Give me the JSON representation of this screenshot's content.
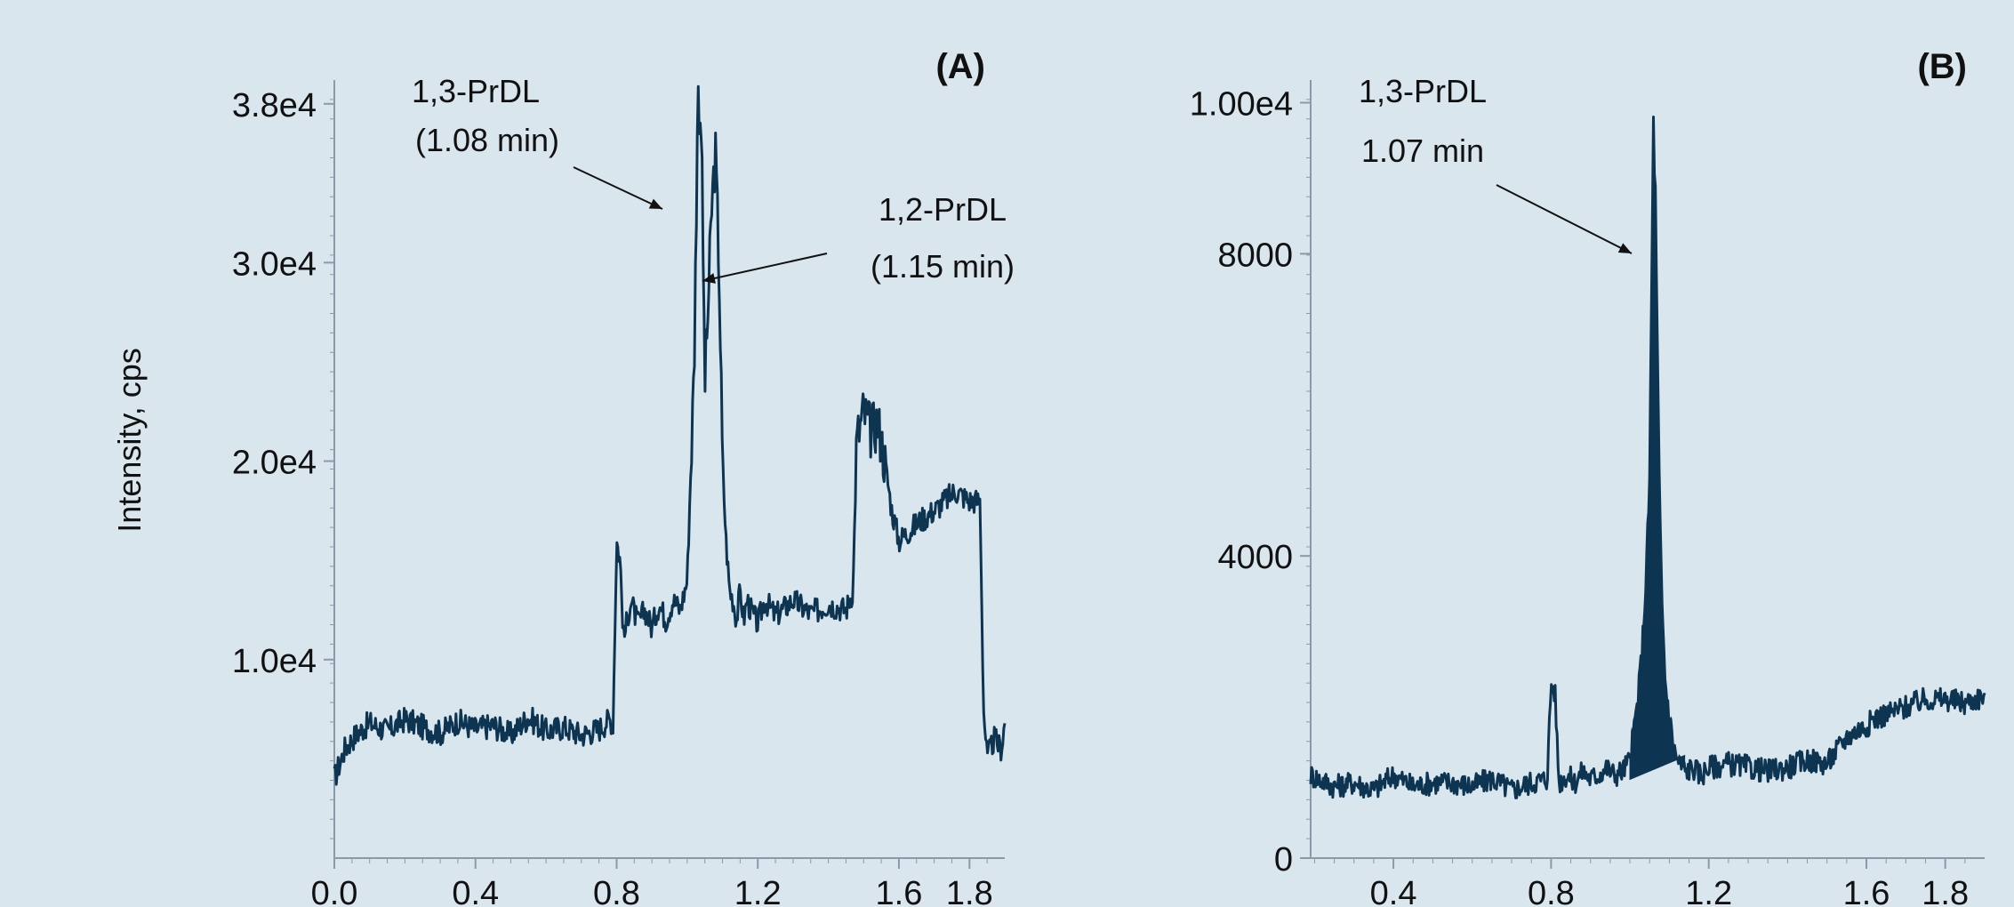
{
  "colors": {
    "background": "#d9e6ee",
    "trace": "#0d3552",
    "axis": "#8a9aa8",
    "text": "#111111"
  },
  "chart_data": [
    {
      "type": "line",
      "panel_label": "(A)",
      "ylabel": "Intensity, cps",
      "xlim": [
        0.0,
        1.9
      ],
      "ylim": [
        0,
        39200
      ],
      "x_ticks": [
        0.0,
        0.4,
        0.8,
        1.2,
        1.6,
        1.8
      ],
      "x_tick_labels": [
        "0.0",
        "0.4",
        "0.8",
        "1.2",
        "1.6",
        "1.8"
      ],
      "y_ticks": [
        10000,
        20000,
        30000,
        38000
      ],
      "y_tick_labels": [
        "1.0e4",
        "2.0e4",
        "3.0e4",
        "3.8e4"
      ],
      "grid": false,
      "series": [
        {
          "x": [
            0.0,
            0.03,
            0.06,
            0.1,
            0.15,
            0.2,
            0.25,
            0.3,
            0.35,
            0.4,
            0.45,
            0.5,
            0.55,
            0.6,
            0.65,
            0.7,
            0.75,
            0.78,
            0.79,
            0.8,
            0.81,
            0.82,
            0.84,
            0.86,
            0.88,
            0.9,
            0.92,
            0.94,
            0.96,
            0.98,
            1.0,
            1.02,
            1.03,
            1.04,
            1.05,
            1.06,
            1.07,
            1.08,
            1.09,
            1.1,
            1.11,
            1.12,
            1.13,
            1.14,
            1.15,
            1.16,
            1.17,
            1.18,
            1.2,
            1.22,
            1.25,
            1.3,
            1.35,
            1.4,
            1.45,
            1.47,
            1.48,
            1.5,
            1.52,
            1.54,
            1.56,
            1.58,
            1.6,
            1.63,
            1.66,
            1.7,
            1.73,
            1.76,
            1.8,
            1.83,
            1.84,
            1.85,
            1.87,
            1.89,
            1.9
          ],
          "y": [
            4000,
            5500,
            6200,
            6800,
            6400,
            7000,
            6600,
            6300,
            6900,
            6500,
            6700,
            6200,
            7100,
            6400,
            6600,
            6200,
            6500,
            7000,
            6800,
            16000,
            15000,
            11000,
            13000,
            11800,
            12500,
            11600,
            12800,
            12000,
            13000,
            12500,
            14000,
            25000,
            38500,
            37000,
            24000,
            28000,
            33000,
            35500,
            30000,
            20000,
            16000,
            13500,
            13000,
            12000,
            13500,
            12000,
            13000,
            12500,
            11800,
            13000,
            12200,
            13000,
            12300,
            12800,
            12500,
            13500,
            21000,
            22500,
            21500,
            22000,
            20000,
            17500,
            16000,
            16500,
            17000,
            17500,
            18000,
            18500,
            18000,
            18000,
            7500,
            5000,
            6000,
            5500,
            6800
          ],
          "noise": 650
        }
      ],
      "annotations": [
        {
          "line1": "1,3-PrDL",
          "line2": "(1.08 min)",
          "x": 1.05,
          "y": 32800
        },
        {
          "line1": "1,2-PrDL",
          "line2": "(1.15 min)",
          "x": 1.12,
          "y": 29400
        }
      ]
    },
    {
      "type": "line",
      "panel_label": "(B)",
      "xlim": [
        0.19,
        1.9
      ],
      "ylim": [
        0,
        10300
      ],
      "x_ticks": [
        0.4,
        0.8,
        1.2,
        1.6,
        1.8
      ],
      "x_tick_labels": [
        "0.4",
        "0.8",
        "1.2",
        "1.6",
        "1.8"
      ],
      "y_ticks": [
        0,
        4000,
        8000,
        10000
      ],
      "y_tick_labels": [
        "0",
        "4000",
        "8000",
        "1.00e4"
      ],
      "grid": false,
      "series": [
        {
          "x": [
            0.19,
            0.25,
            0.3,
            0.35,
            0.4,
            0.45,
            0.5,
            0.55,
            0.6,
            0.65,
            0.7,
            0.75,
            0.79,
            0.8,
            0.81,
            0.82,
            0.84,
            0.86,
            0.88,
            0.9,
            0.92,
            0.94,
            0.96,
            0.98,
            1.0,
            1.01,
            1.02,
            1.03,
            1.04,
            1.05,
            1.055,
            1.06,
            1.065,
            1.07,
            1.075,
            1.08,
            1.085,
            1.09,
            1.1,
            1.11,
            1.12,
            1.14,
            1.16,
            1.18,
            1.2,
            1.25,
            1.3,
            1.35,
            1.4,
            1.45,
            1.5,
            1.55,
            1.58,
            1.6,
            1.62,
            1.65,
            1.7,
            1.75,
            1.8,
            1.85,
            1.9
          ],
          "y": [
            1100,
            950,
            1000,
            900,
            1100,
            950,
            1000,
            1000,
            950,
            1050,
            900,
            1000,
            1050,
            2300,
            2200,
            1000,
            1100,
            1000,
            1150,
            1050,
            1100,
            1200,
            1100,
            1150,
            1300,
            1700,
            2100,
            2700,
            3600,
            5000,
            7500,
            9800,
            8600,
            6500,
            4800,
            3600,
            2900,
            2300,
            1900,
            1500,
            1300,
            1150,
            1200,
            1100,
            1200,
            1250,
            1200,
            1150,
            1200,
            1300,
            1250,
            1600,
            1700,
            1750,
            1850,
            1900,
            2000,
            2100,
            2100,
            2050,
            2150
          ],
          "noise": 160
        }
      ],
      "annotations": [
        {
          "line1": "1,3-PrDL",
          "line2": "1.07 min",
          "x": 1.06,
          "y": 7800
        }
      ]
    }
  ]
}
